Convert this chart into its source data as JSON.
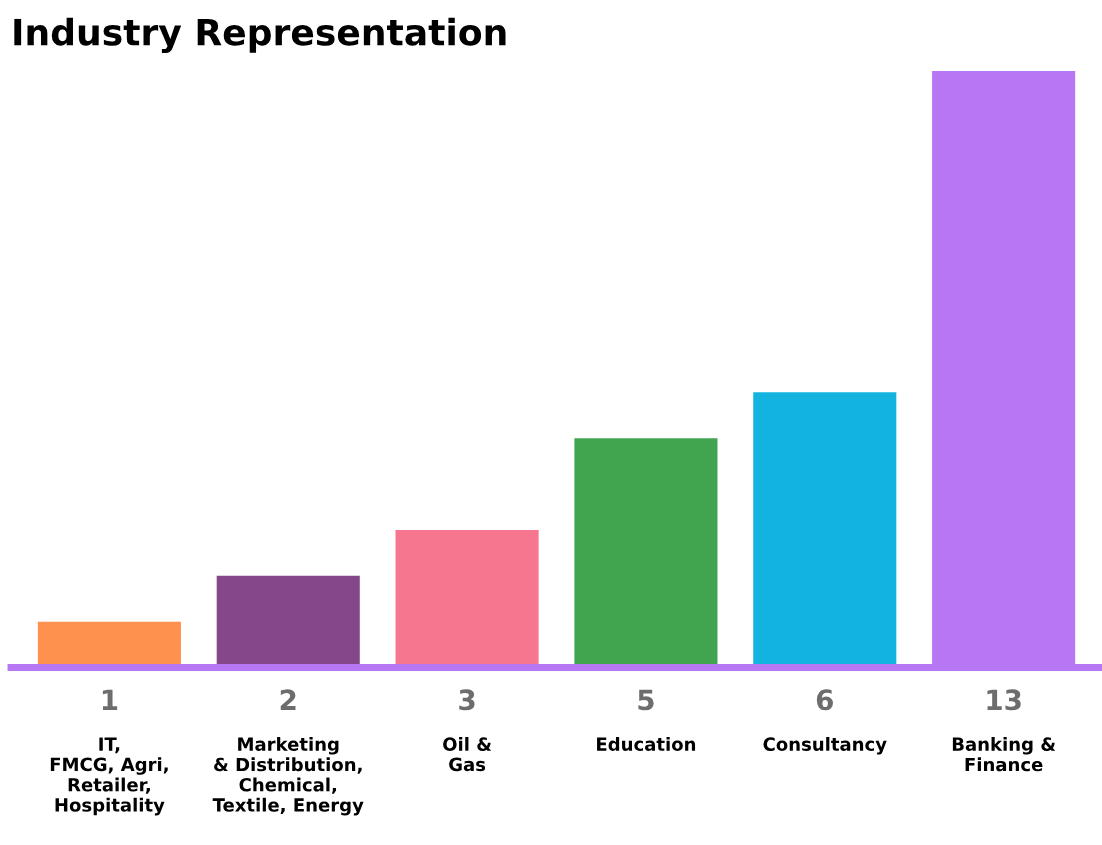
{
  "chart_data": {
    "type": "bar",
    "title": "Industry Representation",
    "categories": [
      "IT,\nFMCG, Agri,\nRetailer,\nHospitality",
      "Marketing\n& Distribution,\nChemical,\nTextile, Energy",
      "Oil &\nGas",
      "Education",
      "Consultancy",
      "Banking &\nFinance"
    ],
    "values": [
      1,
      2,
      3,
      5,
      6,
      13
    ],
    "colors": [
      "#fe914d",
      "#854788",
      "#f67690",
      "#41a54f",
      "#13b3df",
      "#b776f4"
    ],
    "data_labels": true,
    "grid": false,
    "legend": false
  }
}
